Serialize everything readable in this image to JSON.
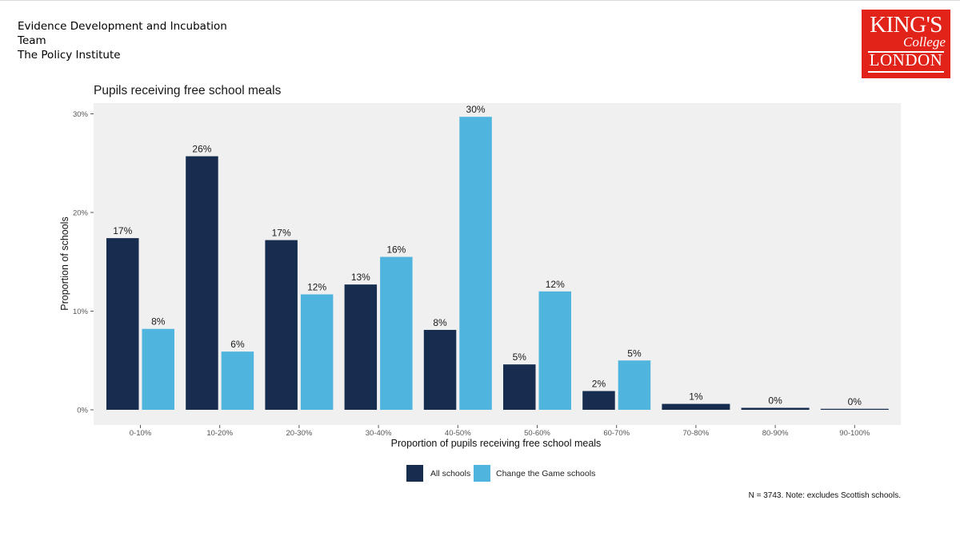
{
  "header": {
    "org_lines": [
      "Evidence Development and Incubation",
      "Team",
      "The Policy Institute"
    ],
    "logo": {
      "line1": "KING'S",
      "line2": "College",
      "line3": "LONDON"
    }
  },
  "chart_data": {
    "type": "bar",
    "title": "Pupils receiving free school meals",
    "xlabel": "Proportion of pupils receiving free school meals",
    "ylabel": "Proportion of schools",
    "ylim": [
      0,
      32
    ],
    "yticks": [
      0,
      10,
      20,
      30
    ],
    "ytick_labels": [
      "0%",
      "10%",
      "20%",
      "30%"
    ],
    "categories": [
      "0-10%",
      "10-20%",
      "20-30%",
      "30-40%",
      "40-50%",
      "50-60%",
      "60-70%",
      "70-80%",
      "80-90%",
      "90-100%"
    ],
    "series": [
      {
        "name": "All schools",
        "color": "#172d4f",
        "values": [
          17.4,
          25.7,
          17.2,
          12.7,
          8.1,
          4.6,
          1.9,
          0.6,
          0.2,
          0.1
        ],
        "labels": [
          "17%",
          "26%",
          "17%",
          "13%",
          "8%",
          "5%",
          "2%",
          "1%",
          "0%",
          "0%"
        ]
      },
      {
        "name": "Change the Game schools",
        "color": "#50b5de",
        "values": [
          8.2,
          5.9,
          11.7,
          15.5,
          29.7,
          12.0,
          5.0,
          null,
          null,
          null
        ],
        "labels": [
          "8%",
          "6%",
          "12%",
          "16%",
          "30%",
          "12%",
          "5%",
          null,
          null,
          null
        ]
      }
    ],
    "legend_position": "bottom",
    "panel_background": "#f0f0f0",
    "grid": false
  },
  "footnote": "N = 3743. Note: excludes Scottish schools."
}
